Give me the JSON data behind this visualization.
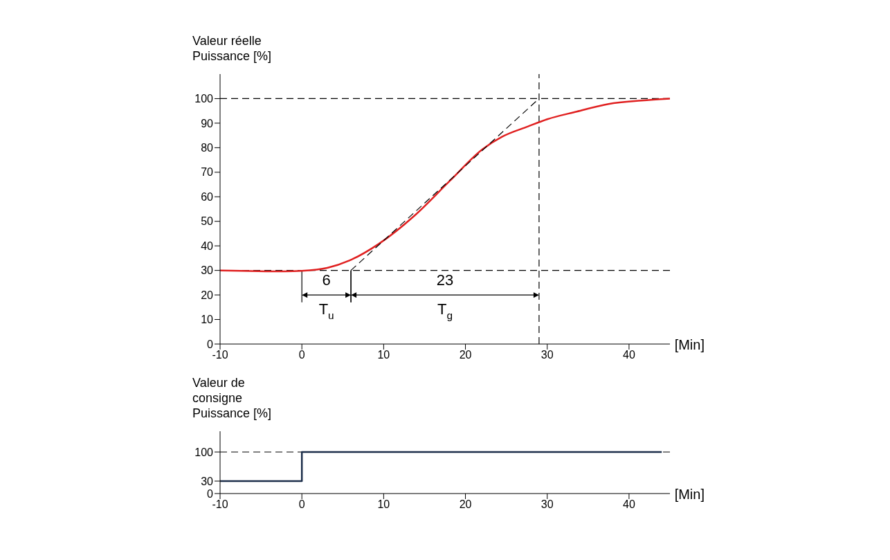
{
  "chart_data": [
    {
      "type": "line",
      "ylabel": "Valeur réelle Puissance [%]",
      "xlabel": "[Min]",
      "xlim": [
        -10,
        45
      ],
      "ylim": [
        0,
        110
      ],
      "xticks": [
        -10,
        0,
        10,
        20,
        30,
        40
      ],
      "yticks": [
        0,
        10,
        20,
        30,
        40,
        50,
        60,
        70,
        80,
        90,
        100
      ],
      "grid": false,
      "legend": false,
      "marker": "none",
      "series": [
        {
          "color": "#e02020",
          "line_style": "solid",
          "x": [
            -10,
            -2.1,
            0,
            3.1,
            5.8,
            9.4,
            13.8,
            18.1,
            22.1,
            24.5,
            27.6,
            30,
            33.6,
            37.5,
            41.5,
            45
          ],
          "values": [
            30,
            29.6,
            29.8,
            31,
            34,
            40.8,
            52.4,
            66.5,
            79.4,
            84.5,
            88.6,
            91.6,
            94.7,
            97.8,
            99.2,
            100
          ]
        },
        {
          "color": "#000000",
          "line_style": "dashed",
          "x": [
            6,
            29
          ],
          "values": [
            30,
            100
          ]
        }
      ],
      "ref_lines": [
        {
          "axis": "y",
          "value": 100,
          "color": "#000000",
          "line_style": "dashed"
        },
        {
          "axis": "y",
          "value": 30,
          "color": "#000000",
          "line_style": "dashed"
        },
        {
          "axis": "x",
          "value": 29,
          "color": "#000000",
          "line_style": "dashed"
        }
      ],
      "annotations": [
        "6",
        "23",
        "T$_{u}$",
        "T$_{g}$"
      ]
    },
    {
      "type": "step",
      "ylabel": "Valeur de consigne Puissance [%]",
      "xlabel": "[Min]",
      "xlim": [
        -10,
        45
      ],
      "ylim": [
        0,
        150
      ],
      "xticks": [
        -10,
        0,
        10,
        20,
        30,
        40
      ],
      "yticks": [
        0,
        30,
        100
      ],
      "grid": false,
      "legend": false,
      "marker": "none",
      "series": [
        {
          "color": "#1c2e4a",
          "line_style": "solid",
          "x": [
            -10,
            0,
            44
          ],
          "values": [
            30,
            100,
            100
          ]
        }
      ],
      "ref_lines": [
        {
          "axis": "y",
          "value": 100,
          "color": "#000000",
          "line_style": "dashed"
        }
      ]
    }
  ]
}
